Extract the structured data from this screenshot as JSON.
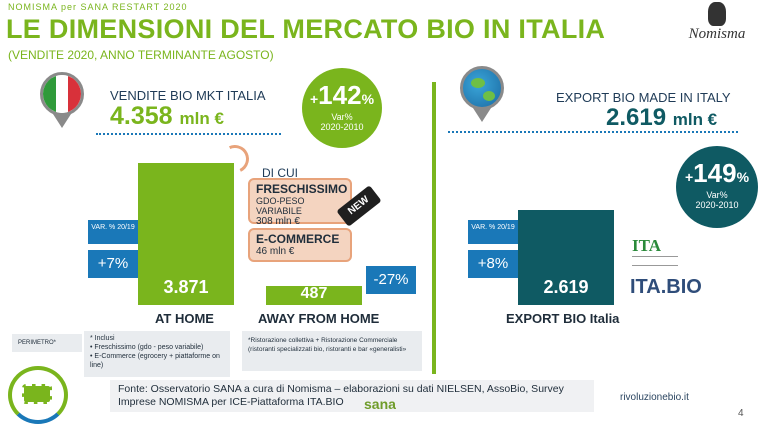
{
  "header": {
    "kicker": "NOMISMA per SANA RESTART 2020",
    "title": "LE DIMENSIONI DEL MERCATO BIO IN ITALIA",
    "subtitle": "(VENDITE 2020, ANNO TERMINANTE AGOSTO)",
    "brand": "Nomisma"
  },
  "left": {
    "label": "VENDITE BIO MKT ITALIA",
    "value": "4.358",
    "unit": "mln €",
    "growth": {
      "prefix": "+",
      "value": "142",
      "suffix": "%",
      "label": "Var%",
      "period": "2020-2010"
    },
    "dicui": "DI CUI",
    "fresh_title": "FRESCHISSIMO",
    "fresh_sub": "GDO-PESO VARIABILE",
    "fresh_value": "308 mln €",
    "new_badge": "NEW",
    "ecom_title": "E-COMMERCE",
    "ecom_value": "46 mln €",
    "home": {
      "var_label": "VAR. % 20/19",
      "var_value": "+7%",
      "value": "3.871",
      "caption": "AT HOME"
    },
    "away": {
      "var_value": "-27%",
      "value": "487",
      "caption": "AWAY FROM HOME"
    }
  },
  "right": {
    "label": "EXPORT BIO MADE IN ITALY",
    "value": "2.619",
    "unit": "mln €",
    "growth": {
      "prefix": "+",
      "value": "149",
      "suffix": "%",
      "label": "Var%",
      "period": "2020-2010"
    },
    "export": {
      "var_label": "VAR. % 20/19",
      "var_value": "+8%",
      "value": "2.619",
      "caption": "EXPORT BIO Italia"
    },
    "ita_logo": "ITA",
    "itabio_logo": "ITA.BIO"
  },
  "perimetro": {
    "label": "PERIMETRO*",
    "inclusi": "* Inclusi",
    "bullet1": "Freschissimo (gdo - peso variabile)",
    "bullet2": "E-Commerce (egrocery + piattaforme on line)",
    "note": "*Ristorazione collettiva + Ristorazione Commerciale (ristoranti specializzati bio, ristoranti e bar «generalisti»"
  },
  "footer": {
    "source": "Fonte: Osservatorio SANA a cura di Nomisma – elaborazioni su dati NIELSEN, AssoBio, Survey Imprese NOMISMA per ICE-Piattaforma ITA.BIO",
    "site": "rivoluzionebio.it",
    "page": "4",
    "sana": "sana"
  },
  "chart_data": {
    "type": "bar",
    "categories": [
      "AT HOME",
      "AWAY FROM HOME",
      "EXPORT BIO Italia"
    ],
    "values": [
      3871,
      487,
      2619
    ],
    "colors": {
      "home": "#7ab51d",
      "export": "#0f5a63",
      "pill": "#1a78b8"
    }
  }
}
